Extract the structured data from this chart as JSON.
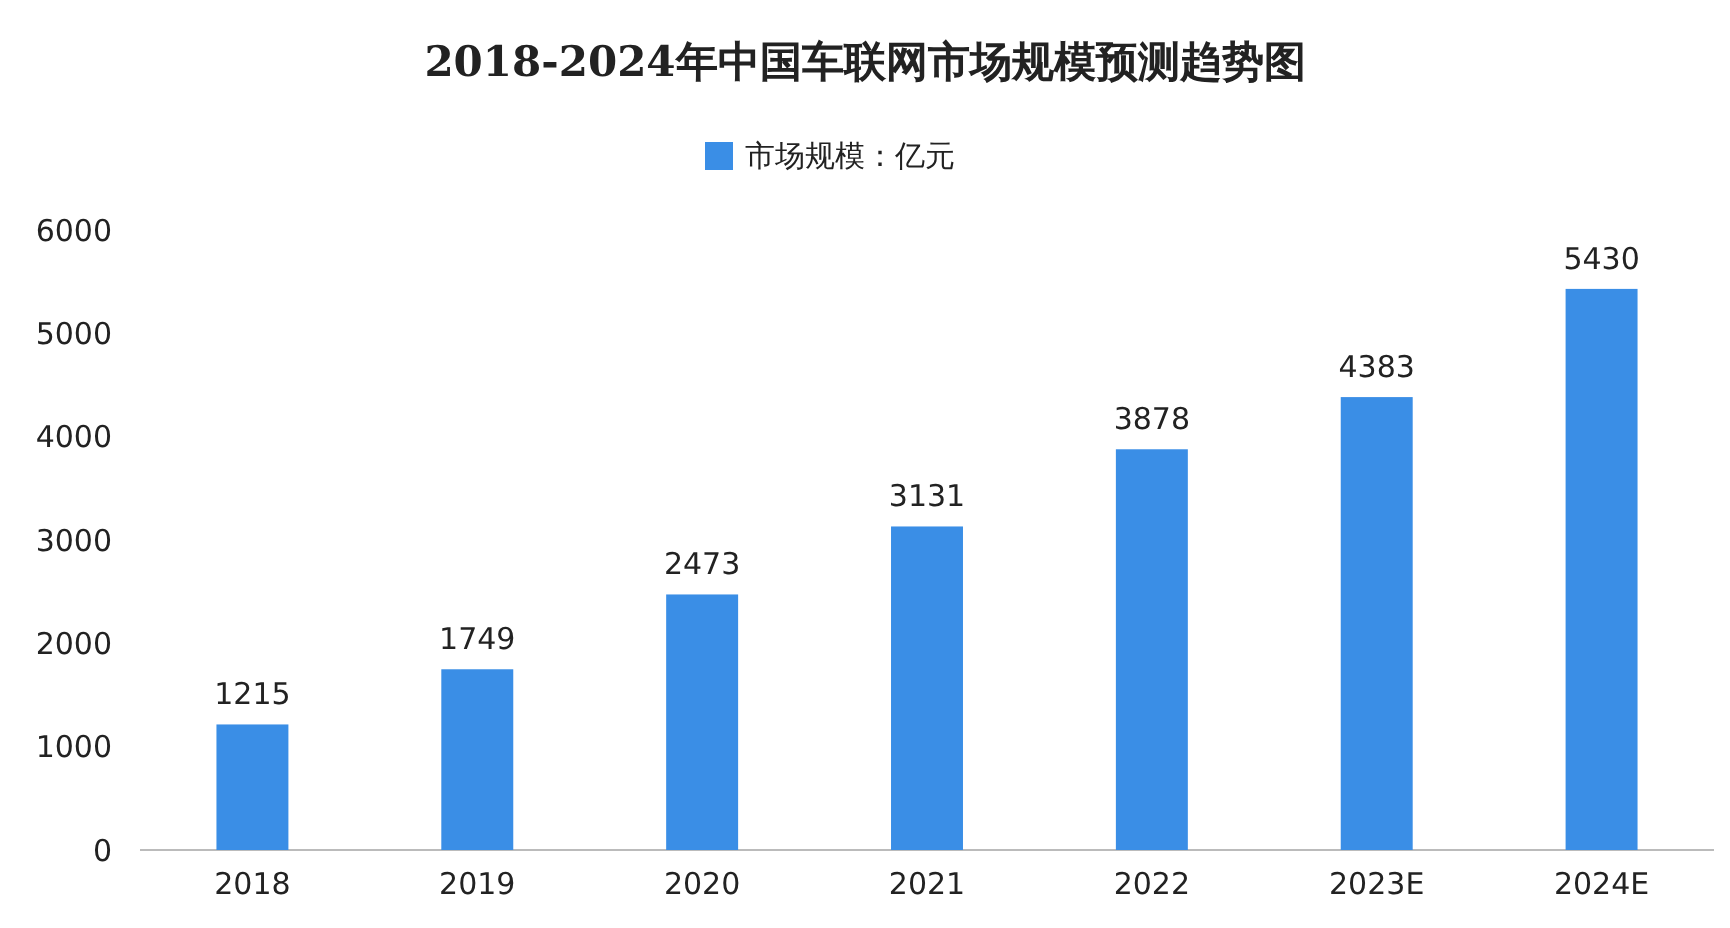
{
  "chart_data": {
    "type": "bar",
    "title": "2018-2024年中国车联网市场规模预测趋势图",
    "categories": [
      "2018",
      "2019",
      "2020",
      "2021",
      "2022",
      "2023E",
      "2024E"
    ],
    "series": [
      {
        "name": "市场规模：亿元",
        "color": "#3a8ee6",
        "values": [
          1215,
          1749,
          2473,
          3131,
          3878,
          4383,
          5430
        ]
      }
    ],
    "ylim": [
      0,
      6000
    ],
    "yticks": [
      0,
      1000,
      2000,
      3000,
      4000,
      5000,
      6000
    ],
    "grid": false,
    "legend": "top",
    "data_labels": true
  }
}
